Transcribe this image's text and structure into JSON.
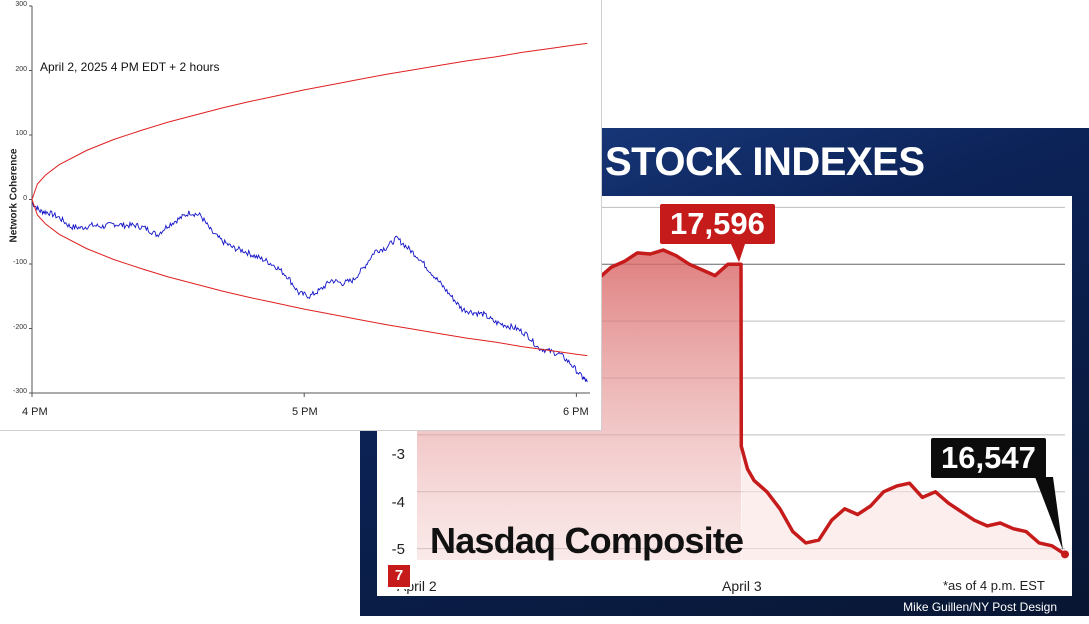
{
  "chart_data": [
    {
      "id": "network-coherence",
      "type": "line",
      "title": "April 2, 2025 4 PM EDT + 2 hours",
      "ylabel": "Network Coherence",
      "xlabel": "",
      "x_ticks": [
        "4 PM",
        "5 PM",
        "6 PM"
      ],
      "y_ticks": [
        300,
        200,
        100,
        0,
        -100,
        -200,
        -300
      ],
      "ylim": [
        -300,
        300
      ],
      "xlim": [
        0,
        2.05
      ],
      "series": [
        {
          "color": "#1414c8",
          "x": [
            0,
            0.03,
            0.06,
            0.1,
            0.14,
            0.18,
            0.22,
            0.26,
            0.3,
            0.34,
            0.38,
            0.42,
            0.46,
            0.5,
            0.54,
            0.58,
            0.62,
            0.66,
            0.7,
            0.74,
            0.78,
            0.82,
            0.86,
            0.9,
            0.94,
            0.98,
            1.02,
            1.06,
            1.1,
            1.14,
            1.18,
            1.22,
            1.26,
            1.3,
            1.34,
            1.38,
            1.42,
            1.46,
            1.5,
            1.54,
            1.58,
            1.62,
            1.66,
            1.7,
            1.74,
            1.78,
            1.82,
            1.86,
            1.9,
            1.94,
            1.98,
            2.02,
            2.04
          ],
          "y": [
            -5,
            -18,
            -20,
            -28,
            -42,
            -44,
            -40,
            -42,
            -38,
            -40,
            -40,
            -45,
            -55,
            -40,
            -30,
            -20,
            -25,
            -50,
            -65,
            -75,
            -80,
            -88,
            -95,
            -105,
            -120,
            -145,
            -150,
            -140,
            -125,
            -130,
            -125,
            -105,
            -80,
            -75,
            -60,
            -75,
            -90,
            -110,
            -130,
            -150,
            -170,
            -175,
            -178,
            -190,
            -195,
            -200,
            -210,
            -230,
            -235,
            -240,
            -255,
            -275,
            -283
          ]
        },
        {
          "color": "#e02020",
          "label_note": "upper envelope",
          "x": [
            0,
            0.02,
            0.05,
            0.1,
            0.2,
            0.3,
            0.4,
            0.5,
            0.6,
            0.7,
            0.8,
            0.9,
            1.0,
            1.1,
            1.2,
            1.3,
            1.4,
            1.5,
            1.6,
            1.7,
            1.8,
            1.9,
            2.0,
            2.04
          ],
          "y": [
            0,
            24,
            38,
            54,
            76,
            93,
            107,
            120,
            131,
            142,
            152,
            161,
            170,
            178,
            186,
            194,
            201,
            208,
            215,
            221,
            228,
            234,
            240,
            242
          ]
        },
        {
          "color": "#e02020",
          "label_note": "lower envelope",
          "x": [
            0,
            0.02,
            0.05,
            0.1,
            0.2,
            0.3,
            0.4,
            0.5,
            0.6,
            0.7,
            0.8,
            0.9,
            1.0,
            1.1,
            1.2,
            1.3,
            1.4,
            1.5,
            1.6,
            1.7,
            1.8,
            1.9,
            2.0,
            2.04
          ],
          "y": [
            0,
            -24,
            -38,
            -54,
            -76,
            -93,
            -107,
            -120,
            -131,
            -142,
            -152,
            -161,
            -170,
            -178,
            -186,
            -194,
            -201,
            -208,
            -215,
            -221,
            -228,
            -234,
            -240,
            -242
          ]
        }
      ]
    },
    {
      "id": "nasdaq-composite",
      "type": "area",
      "title": "STOCK INDEXES",
      "series_title": "Nasdaq Composite",
      "x_ticks": [
        "April 2",
        "April 3"
      ],
      "y_ticks": [
        "-3",
        "-4",
        "-5"
      ],
      "ylim": [
        -5.2,
        1.2
      ],
      "note": "*as of 4 p.m. EST",
      "callouts": [
        {
          "label": "17,596",
          "style": "red"
        },
        {
          "label": "16,547",
          "style": "black"
        }
      ],
      "series": [
        {
          "color": "#c61b1b",
          "x": [
            0,
            0.02,
            0.04,
            0.06,
            0.08,
            0.1,
            0.12,
            0.14,
            0.16,
            0.18,
            0.2,
            0.22,
            0.24,
            0.26,
            0.28,
            0.3,
            0.32,
            0.34,
            0.36,
            0.38,
            0.4,
            0.42,
            0.44,
            0.46,
            0.48,
            0.5,
            0.5005,
            0.51,
            0.52,
            0.54,
            0.56,
            0.58,
            0.6,
            0.62,
            0.64,
            0.66,
            0.68,
            0.7,
            0.72,
            0.74,
            0.76,
            0.78,
            0.8,
            0.82,
            0.84,
            0.86,
            0.88,
            0.9,
            0.92,
            0.94,
            0.96,
            0.98,
            1.0
          ],
          "y": [
            0.9,
            0.7,
            0.5,
            0.3,
            0.15,
            0.1,
            0.0,
            -0.05,
            -0.2,
            -0.3,
            -0.1,
            -0.15,
            -0.35,
            -0.2,
            -0.25,
            -0.05,
            0.05,
            0.2,
            0.18,
            0.25,
            0.15,
            0.0,
            -0.1,
            -0.2,
            0.0,
            0.0,
            -3.2,
            -3.6,
            -3.8,
            -4.0,
            -4.3,
            -4.7,
            -4.9,
            -4.85,
            -4.5,
            -4.3,
            -4.4,
            -4.25,
            -4.0,
            -3.9,
            -3.85,
            -4.1,
            -4.0,
            -4.2,
            -4.35,
            -4.5,
            -4.6,
            -4.55,
            -4.65,
            -4.7,
            -4.9,
            -4.95,
            -5.1
          ]
        }
      ]
    }
  ],
  "credit": "Mike Guillen/NY Post Design",
  "logo_text": "7"
}
